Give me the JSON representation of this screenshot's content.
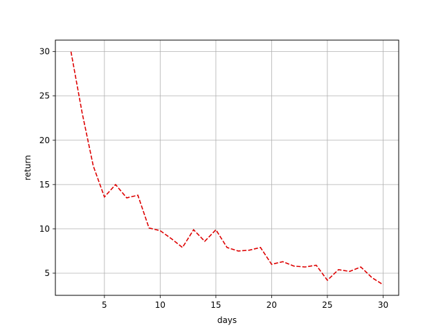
{
  "chart_data": {
    "type": "line",
    "title": "",
    "xlabel": "days",
    "ylabel": "return",
    "xlim": [
      0.6,
      31.4
    ],
    "ylim": [
      2.5,
      31.3
    ],
    "xticks": [
      5,
      10,
      15,
      20,
      25,
      30
    ],
    "yticks": [
      5,
      10,
      15,
      20,
      25,
      30
    ],
    "grid": true,
    "series": [
      {
        "color": "#dd0000",
        "linestyle": "dashed",
        "x": [
          2,
          3,
          4,
          5,
          6,
          7,
          8,
          9,
          10,
          11,
          12,
          13,
          14,
          15,
          16,
          17,
          18,
          19,
          20,
          21,
          22,
          23,
          24,
          25,
          26,
          27,
          28,
          29,
          30
        ],
        "y": [
          30.0,
          23.1,
          17.1,
          13.6,
          15.0,
          13.5,
          13.8,
          10.1,
          9.8,
          8.9,
          7.9,
          9.9,
          8.6,
          9.9,
          7.9,
          7.5,
          7.6,
          7.9,
          6.0,
          6.3,
          5.8,
          5.7,
          5.9,
          4.2,
          5.4,
          5.2,
          5.7,
          4.5,
          3.7
        ]
      }
    ]
  }
}
